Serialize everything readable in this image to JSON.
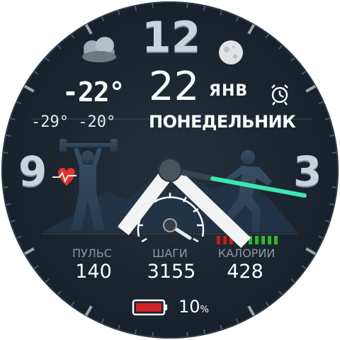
{
  "dial": {
    "hour_12": "12",
    "hour_9": "9",
    "hour_3": "3"
  },
  "weather": {
    "current_temp": "-22°",
    "range_low": "-29°",
    "range_high": "-20°",
    "condition_icon": "cloud-icon"
  },
  "moon_icon": "full-moon-icon",
  "alarm_icon": "alarm-clock-icon",
  "date": {
    "day": "22",
    "month": "ЯНВ",
    "weekday": "ПОНЕДЕЛЬНИК"
  },
  "stats": [
    {
      "label": "ПУЛЬС",
      "value": "140"
    },
    {
      "label": "ШАГИ",
      "value": "3155"
    },
    {
      "label": "КАЛОРИИ",
      "value": "428"
    }
  ],
  "battery": {
    "percent": "10",
    "unit": "%"
  },
  "colors": {
    "background": "#1c2733",
    "second_hand": "#3fe6b0",
    "hands": "#e8ecef",
    "heart": "#e0312b",
    "bars_red": "#c21d1d",
    "bars_green": "#2fb72f",
    "battery_fill": "#d4222a"
  }
}
